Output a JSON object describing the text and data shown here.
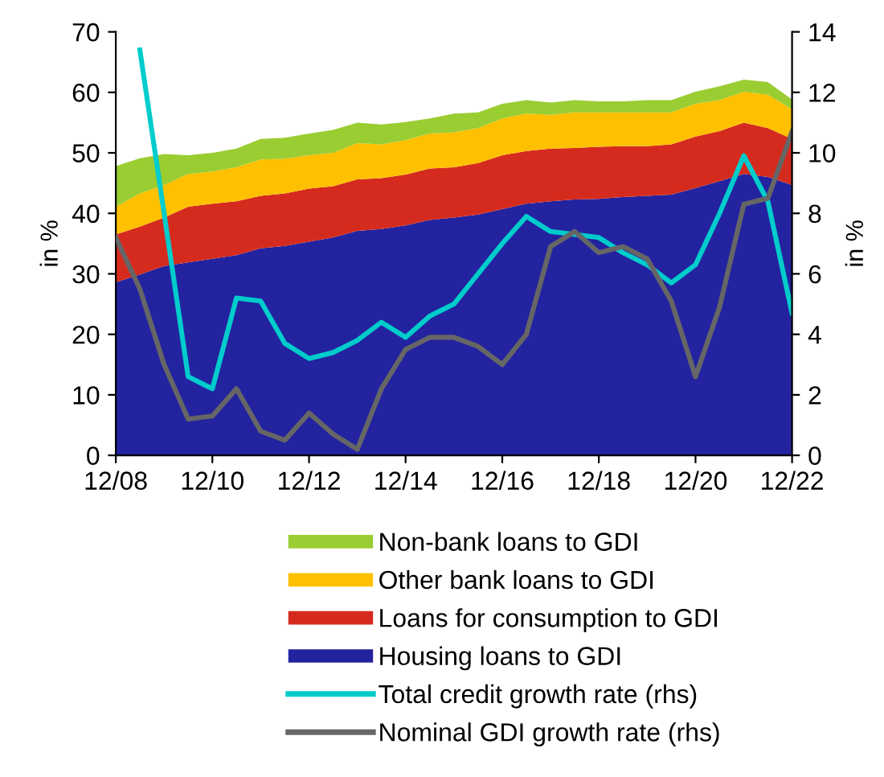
{
  "chart_data": {
    "type": "area",
    "stacked": true,
    "ylabel": "in %",
    "y2label": "in %",
    "x": [
      "2008-12",
      "2009-06",
      "2009-12",
      "2010-06",
      "2010-12",
      "2011-06",
      "2011-12",
      "2012-06",
      "2012-12",
      "2013-06",
      "2013-12",
      "2014-06",
      "2014-12",
      "2015-06",
      "2015-12",
      "2016-06",
      "2016-12",
      "2017-06",
      "2017-12",
      "2018-06",
      "2018-12",
      "2019-06",
      "2019-12",
      "2020-06",
      "2020-12",
      "2021-06",
      "2021-12",
      "2022-06",
      "2022-12"
    ],
    "xlim": [
      "2008-12",
      "2022-12"
    ],
    "xticks": [
      {
        "value": "2008-12",
        "label": "12/08"
      },
      {
        "value": "2010-12",
        "label": "12/10"
      },
      {
        "value": "2012-12",
        "label": "12/12"
      },
      {
        "value": "2014-12",
        "label": "12/14"
      },
      {
        "value": "2016-12",
        "label": "12/16"
      },
      {
        "value": "2018-12",
        "label": "12/18"
      },
      {
        "value": "2020-12",
        "label": "12/20"
      },
      {
        "value": "2022-12",
        "label": "12/22"
      }
    ],
    "ylim": [
      0,
      70
    ],
    "yticks": [
      0,
      10,
      20,
      30,
      40,
      50,
      60,
      70
    ],
    "y2lim": [
      0,
      14
    ],
    "y2ticks": [
      0,
      2,
      4,
      6,
      8,
      10,
      12,
      14
    ],
    "legend": "bottom",
    "grid": false,
    "series": [
      {
        "name": "Housing loans to GDI",
        "color": "#2323a0",
        "values": [
          28.6,
          29.9,
          31.3,
          31.9,
          32.5,
          33.1,
          34.2,
          34.6,
          35.3,
          36.0,
          37.1,
          37.4,
          38.0,
          38.9,
          39.3,
          39.8,
          40.7,
          41.6,
          42.0,
          42.3,
          42.4,
          42.7,
          42.9,
          43.1,
          44.2,
          45.3,
          46.5,
          46.0,
          44.7
        ]
      },
      {
        "name": "Loans for consumption to GDI",
        "color": "#d52b1e",
        "values": [
          7.9,
          7.9,
          8.0,
          9.2,
          9.1,
          8.9,
          8.7,
          8.7,
          8.8,
          8.5,
          8.5,
          8.4,
          8.4,
          8.5,
          8.3,
          8.5,
          8.9,
          8.7,
          8.7,
          8.5,
          8.6,
          8.4,
          8.2,
          8.3,
          8.5,
          8.3,
          8.5,
          8.1,
          7.6
        ]
      },
      {
        "name": "Other bank loans to GDI",
        "color": "#ffc000",
        "values": [
          4.6,
          5.5,
          5.4,
          5.4,
          5.3,
          5.6,
          6.0,
          5.7,
          5.5,
          5.5,
          6.0,
          5.6,
          5.7,
          5.8,
          5.8,
          5.8,
          6.1,
          6.2,
          5.6,
          5.9,
          5.7,
          5.6,
          5.6,
          5.3,
          5.4,
          5.1,
          5.1,
          5.5,
          4.9
        ]
      },
      {
        "name": "Non-bank loans to GDI",
        "color": "#9acd32",
        "values": [
          6.7,
          5.8,
          5.1,
          3.1,
          3.1,
          3.1,
          3.4,
          3.5,
          3.6,
          3.8,
          3.4,
          3.3,
          3.0,
          2.5,
          3.1,
          2.6,
          2.4,
          2.2,
          2.0,
          2.0,
          1.8,
          1.8,
          2.0,
          2.0,
          2.0,
          2.3,
          2.0,
          2.1,
          1.6
        ]
      },
      {
        "name": "Total credit growth rate (rhs)",
        "type": "line",
        "axis": "y2",
        "color": "#00cccc",
        "values": [
          null,
          13.4,
          8.0,
          2.6,
          2.2,
          5.2,
          5.1,
          3.7,
          3.2,
          3.4,
          3.8,
          4.4,
          3.9,
          4.6,
          5.0,
          6.0,
          7.0,
          7.9,
          7.4,
          7.3,
          7.2,
          6.7,
          6.3,
          5.7,
          6.3,
          8.0,
          9.9,
          8.4,
          4.7
        ]
      },
      {
        "name": "Nominal GDI growth rate (rhs)",
        "type": "line",
        "axis": "y2",
        "color": "#666666",
        "values": [
          7.2,
          5.5,
          3.0,
          1.2,
          1.3,
          2.2,
          0.8,
          0.5,
          1.4,
          0.7,
          0.2,
          2.2,
          3.5,
          3.9,
          3.9,
          3.6,
          3.0,
          4.0,
          6.9,
          7.4,
          6.7,
          6.9,
          6.5,
          5.1,
          2.6,
          4.9,
          8.3,
          8.5,
          10.7
        ]
      }
    ]
  }
}
